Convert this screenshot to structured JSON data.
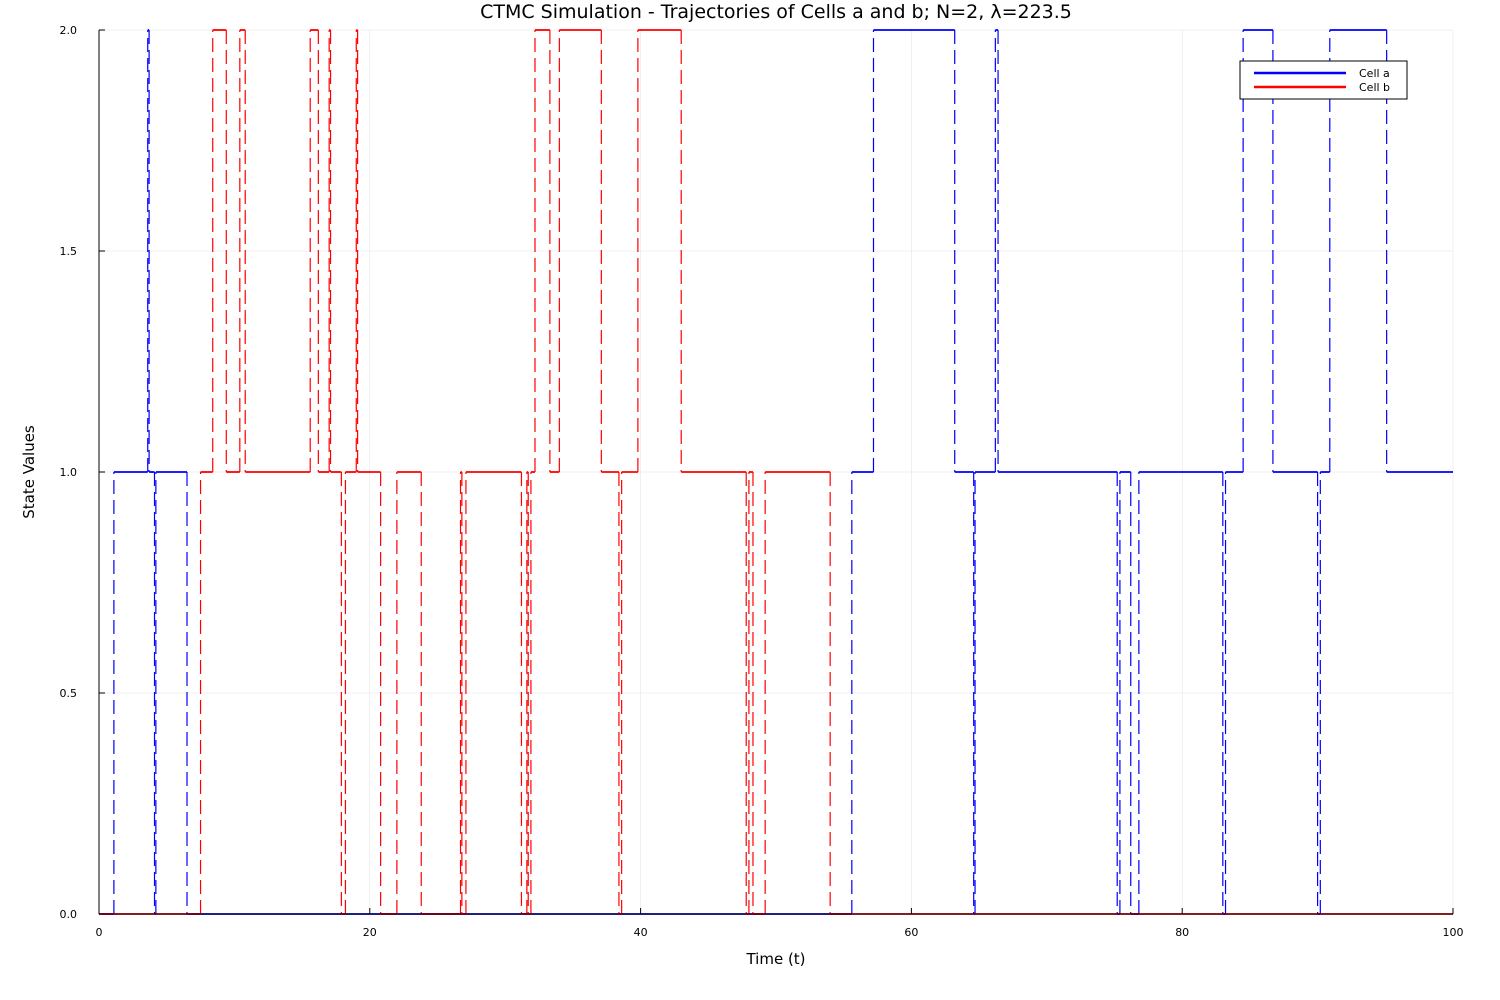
{
  "chart_data": {
    "type": "line",
    "step": true,
    "title": "CTMC Simulation - Trajectories of Cells a and b; N=2, λ=223.5",
    "xlabel": "Time (t)",
    "ylabel": "State Values",
    "xlim": [
      0,
      100
    ],
    "ylim": [
      0,
      2
    ],
    "xticks": [
      "0",
      "20",
      "40",
      "60",
      "80",
      "100"
    ],
    "yticks": [
      "0.0",
      "0.5",
      "1.0",
      "1.5",
      "2.0"
    ],
    "grid": true,
    "legend_position": "top-right",
    "series": [
      {
        "name": "Cell a",
        "color": "#0000ff",
        "segments": [
          {
            "x0": 0.0,
            "x1": 1.1,
            "y": 0
          },
          {
            "x0": 1.1,
            "x1": 3.6,
            "y": 1
          },
          {
            "x0": 3.6,
            "x1": 3.7,
            "y": 2
          },
          {
            "x0": 3.7,
            "x1": 4.1,
            "y": 1
          },
          {
            "x0": 4.1,
            "x1": 4.2,
            "y": 0
          },
          {
            "x0": 4.2,
            "x1": 6.5,
            "y": 1
          },
          {
            "x0": 6.5,
            "x1": 55.6,
            "y": 0
          },
          {
            "x0": 55.6,
            "x1": 57.2,
            "y": 1
          },
          {
            "x0": 57.2,
            "x1": 63.2,
            "y": 2
          },
          {
            "x0": 63.2,
            "x1": 64.6,
            "y": 1
          },
          {
            "x0": 64.6,
            "x1": 64.7,
            "y": 0
          },
          {
            "x0": 64.7,
            "x1": 66.2,
            "y": 1
          },
          {
            "x0": 66.2,
            "x1": 66.4,
            "y": 2
          },
          {
            "x0": 66.4,
            "x1": 75.2,
            "y": 1
          },
          {
            "x0": 75.2,
            "x1": 75.4,
            "y": 0
          },
          {
            "x0": 75.4,
            "x1": 76.2,
            "y": 1
          },
          {
            "x0": 76.2,
            "x1": 76.8,
            "y": 0
          },
          {
            "x0": 76.8,
            "x1": 83.0,
            "y": 1
          },
          {
            "x0": 83.0,
            "x1": 83.2,
            "y": 0
          },
          {
            "x0": 83.2,
            "x1": 84.5,
            "y": 1
          },
          {
            "x0": 84.5,
            "x1": 86.7,
            "y": 2
          },
          {
            "x0": 86.7,
            "x1": 90.0,
            "y": 1
          },
          {
            "x0": 90.0,
            "x1": 90.2,
            "y": 0
          },
          {
            "x0": 90.2,
            "x1": 90.9,
            "y": 1
          },
          {
            "x0": 90.9,
            "x1": 95.1,
            "y": 2
          },
          {
            "x0": 95.1,
            "x1": 100.0,
            "y": 1
          }
        ]
      },
      {
        "name": "Cell b",
        "color": "#ff0000",
        "segments": [
          {
            "x0": 0.0,
            "x1": 7.5,
            "y": 0
          },
          {
            "x0": 7.5,
            "x1": 8.4,
            "y": 1
          },
          {
            "x0": 8.4,
            "x1": 9.4,
            "y": 2
          },
          {
            "x0": 9.4,
            "x1": 10.4,
            "y": 1
          },
          {
            "x0": 10.4,
            "x1": 10.8,
            "y": 2
          },
          {
            "x0": 10.8,
            "x1": 15.6,
            "y": 1
          },
          {
            "x0": 15.6,
            "x1": 16.2,
            "y": 2
          },
          {
            "x0": 16.2,
            "x1": 17.0,
            "y": 1
          },
          {
            "x0": 17.0,
            "x1": 17.1,
            "y": 2
          },
          {
            "x0": 17.1,
            "x1": 17.9,
            "y": 1
          },
          {
            "x0": 17.9,
            "x1": 18.2,
            "y": 0
          },
          {
            "x0": 18.2,
            "x1": 19.0,
            "y": 1
          },
          {
            "x0": 19.0,
            "x1": 19.1,
            "y": 2
          },
          {
            "x0": 19.1,
            "x1": 20.8,
            "y": 1
          },
          {
            "x0": 20.8,
            "x1": 22.0,
            "y": 0
          },
          {
            "x0": 22.0,
            "x1": 23.8,
            "y": 1
          },
          {
            "x0": 23.8,
            "x1": 26.7,
            "y": 0
          },
          {
            "x0": 26.7,
            "x1": 26.8,
            "y": 1
          },
          {
            "x0": 26.8,
            "x1": 27.1,
            "y": 0
          },
          {
            "x0": 27.1,
            "x1": 31.2,
            "y": 1
          },
          {
            "x0": 31.2,
            "x1": 31.6,
            "y": 0
          },
          {
            "x0": 31.6,
            "x1": 31.7,
            "y": 1
          },
          {
            "x0": 31.7,
            "x1": 31.9,
            "y": 0
          },
          {
            "x0": 31.9,
            "x1": 32.2,
            "y": 1
          },
          {
            "x0": 32.2,
            "x1": 33.3,
            "y": 2
          },
          {
            "x0": 33.3,
            "x1": 34.0,
            "y": 1
          },
          {
            "x0": 34.0,
            "x1": 37.1,
            "y": 2
          },
          {
            "x0": 37.1,
            "x1": 38.4,
            "y": 1
          },
          {
            "x0": 38.4,
            "x1": 38.6,
            "y": 0
          },
          {
            "x0": 38.6,
            "x1": 39.8,
            "y": 1
          },
          {
            "x0": 39.8,
            "x1": 43.0,
            "y": 2
          },
          {
            "x0": 43.0,
            "x1": 47.8,
            "y": 1
          },
          {
            "x0": 47.8,
            "x1": 48.0,
            "y": 0
          },
          {
            "x0": 48.0,
            "x1": 48.3,
            "y": 1
          },
          {
            "x0": 48.3,
            "x1": 49.2,
            "y": 0
          },
          {
            "x0": 49.2,
            "x1": 54.0,
            "y": 1
          },
          {
            "x0": 54.0,
            "x1": 100.0,
            "y": 0
          }
        ]
      }
    ]
  }
}
